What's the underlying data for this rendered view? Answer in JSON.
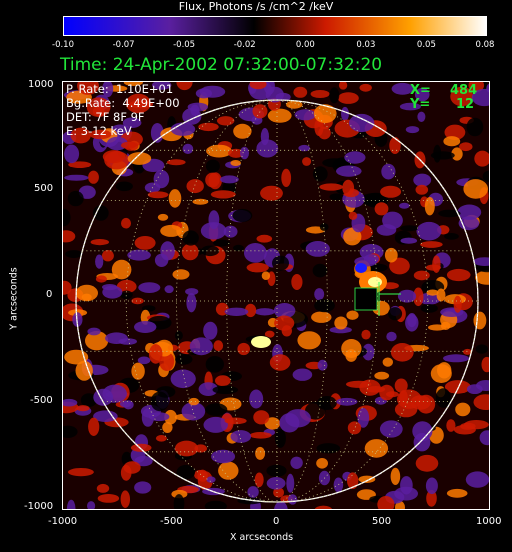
{
  "colorbar": {
    "title": "Flux, Photons /s /cm^2 /keV",
    "ticks": [
      "-0.10",
      "-0.07",
      "-0.05",
      "-0.02",
      "0.00",
      "0.03",
      "0.05",
      "0.08"
    ],
    "colors": [
      "#0000ff",
      "#5a1fa0",
      "#000000",
      "#cc1a00",
      "#ffa000",
      "#ffffff"
    ]
  },
  "time_label": "Time: 24-Apr-2002 07:32:00-07:32:20",
  "info": {
    "p_rate": "P. Rate:  1.10E+01",
    "bg_rate": "Bg.Rate:  4.49E+00",
    "det": "DET: 7F 8F 9F",
    "energy": "E: 3-12 keV"
  },
  "cursor": {
    "x_label": "X=",
    "x_value": "484",
    "y_label": "Y=",
    "y_value": "12"
  },
  "axes": {
    "x_label": "X arcseconds",
    "y_label": "Y arcseconds",
    "x_ticks": [
      "-1000",
      "-500",
      "0",
      "500",
      "1000"
    ],
    "y_ticks": [
      "1000",
      "500",
      "0",
      "-500",
      "-1000"
    ]
  },
  "map_colors": {
    "limb": "#ffffff",
    "grid": "#cccc88",
    "bright": "#ffff99",
    "red": "#cc1a00",
    "orange": "#ff7a00",
    "purple": "#5a1fa0",
    "blue": "#1a1aff",
    "cursor": "#33ff55"
  }
}
